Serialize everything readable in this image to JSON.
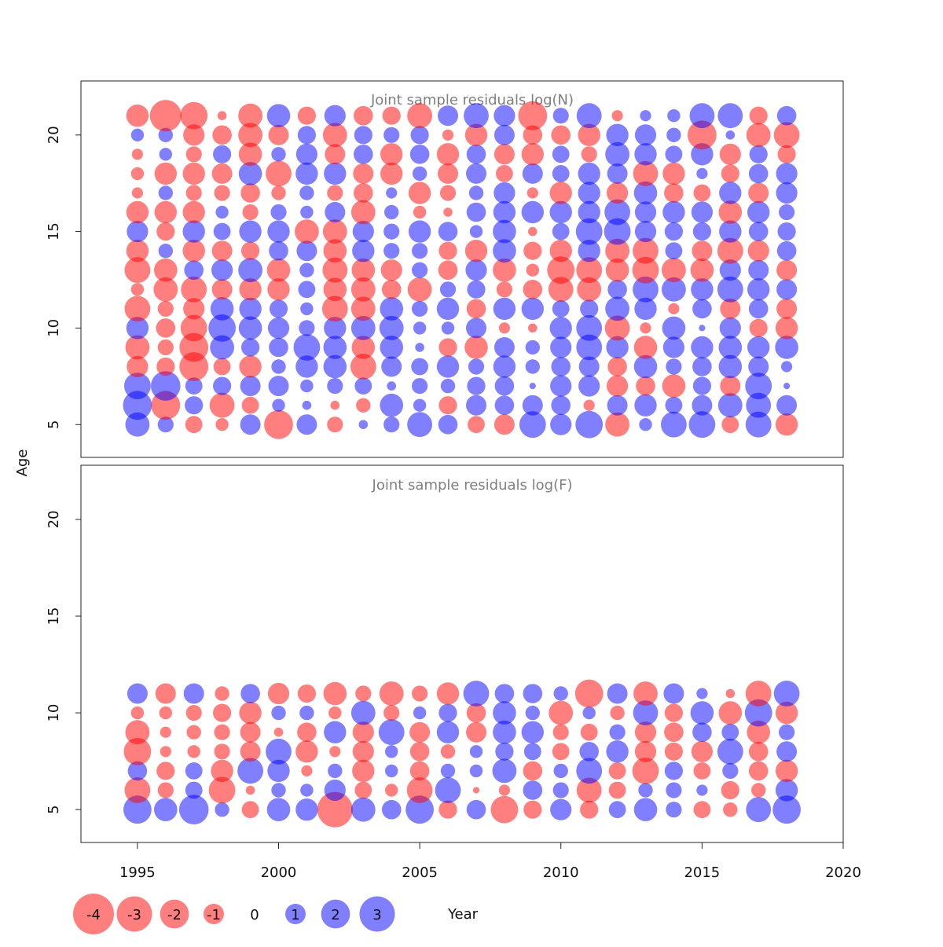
{
  "chart_data": {
    "type": "scatter",
    "xlabel": "Year",
    "ylabel": "Age",
    "xlim": [
      1993,
      2020
    ],
    "x_ticks": [
      "1995",
      "2000",
      "2005",
      "2010",
      "2015",
      "2020"
    ],
    "y_ticks": [
      "5",
      "10",
      "15",
      "20"
    ],
    "colors": {
      "negative": "#ff0000",
      "positive": "#0000ff",
      "alpha": 0.5
    },
    "years": [
      1995,
      1996,
      1997,
      1998,
      1999,
      2000,
      2001,
      2002,
      2003,
      2004,
      2005,
      2006,
      2007,
      2008,
      2009,
      2010,
      2011,
      2012,
      2013,
      2014,
      2015,
      2016,
      2017,
      2018
    ],
    "legend": [
      {
        "value": -4,
        "label": "-4"
      },
      {
        "value": -3,
        "label": "-3"
      },
      {
        "value": -2,
        "label": "-2"
      },
      {
        "value": -1,
        "label": "-1"
      },
      {
        "value": 0,
        "label": "0"
      },
      {
        "value": 1,
        "label": "1"
      },
      {
        "value": 2,
        "label": "2"
      },
      {
        "value": 3,
        "label": "3"
      }
    ],
    "panels": [
      {
        "title": "Joint sample residuals log(N)",
        "ylim": [
          3.3,
          22.8
        ],
        "ages": [
          5,
          6,
          7,
          8,
          9,
          10,
          11,
          12,
          13,
          14,
          15,
          16,
          17,
          18,
          19,
          20,
          21
        ],
        "residuals": [
          [
            1.4,
            0.6,
            -0.7,
            -0.4,
            1.0,
            -2.0,
            1.0,
            -0.6,
            0.2,
            0.6,
            1.5,
            0.9,
            -0.7,
            -1.0,
            1.7,
            1.1,
            1.8,
            -1.4,
            0.4,
            1.6,
            1.7,
            -0.7,
            1.6,
            -1.2
          ],
          [
            2.0,
            -2.0,
            0.8,
            -1.5,
            -0.7,
            0.4,
            0.2,
            -0.2,
            -0.5,
            1.3,
            0.4,
            -0.8,
            1.0,
            0.9,
            1.0,
            0.9,
            -0.3,
            1.0,
            1.2,
            0.7,
            1.0,
            1.4,
            1.5,
            1.0
          ],
          [
            1.7,
            2.1,
            0.7,
            0.8,
            1.0,
            1.0,
            0.4,
            0.6,
            0.7,
            0.2,
            0.6,
            0.5,
            0.8,
            0.9,
            0.1,
            1.1,
            1.1,
            -1.1,
            -0.9,
            -1.3,
            0.8,
            -1.0,
            1.7,
            0.1
          ],
          [
            -1.1,
            -0.8,
            -2.0,
            -0.7,
            -1.2,
            0.5,
            1.2,
            1.3,
            -1.6,
            1.0,
            0.7,
            1.2,
            0.6,
            1.2,
            0.5,
            0.9,
            1.0,
            -0.9,
            1.3,
            0.6,
            0.9,
            1.3,
            1.0,
            0.3
          ],
          [
            -1.4,
            -0.6,
            -2.0,
            1.4,
            0.8,
            0.9,
            1.7,
            1.3,
            -1.3,
            1.3,
            0.2,
            -0.8,
            -1.3,
            1.0,
            0.5,
            1.1,
            1.6,
            1.2,
            -1.3,
            1.1,
            1.2,
            1.3,
            1.2,
            1.3
          ],
          [
            1.2,
            -0.9,
            -1.7,
            1.8,
            1.3,
            1.1,
            0.6,
            1.2,
            1.4,
            1.4,
            0.4,
            0.4,
            1.0,
            -0.3,
            -0.2,
            1.2,
            1.6,
            -1.5,
            -0.3,
            1.3,
            0.1,
            1.1,
            -0.8,
            -1.2
          ],
          [
            -1.6,
            -0.6,
            -1.1,
            1.3,
            1.2,
            0.8,
            0.4,
            -1.6,
            -1.4,
            1.3,
            0.6,
            1.2,
            -0.9,
            1.2,
            1.2,
            0.7,
            0.8,
            1.4,
            1.2,
            -0.3,
            0.9,
            -1.0,
            0.9,
            -1.0
          ],
          [
            -0.4,
            -1.4,
            -1.6,
            -1.0,
            -1.2,
            -1.2,
            0.7,
            -1.3,
            -1.4,
            -0.9,
            -1.4,
            0.6,
            0.8,
            -0.6,
            -0.9,
            -1.5,
            -1.4,
            0.9,
            1.6,
            1.4,
            1.2,
            1.6,
            1.2,
            1.0
          ],
          [
            -1.6,
            -1.3,
            0.9,
            1.1,
            1.4,
            -1.3,
            0.5,
            -1.5,
            -1.3,
            -1.1,
            0.6,
            -0.9,
            1.1,
            -1.3,
            -0.4,
            -1.8,
            -1.6,
            -1.3,
            -1.7,
            -1.4,
            -1.3,
            1.1,
            1.0,
            -1.0
          ],
          [
            -1.2,
            0.5,
            -1.2,
            -1.0,
            -0.8,
            0.9,
            1.0,
            -1.3,
            1.2,
            0.6,
            0.6,
            -0.8,
            -1.2,
            1.3,
            -0.8,
            -1.2,
            1.2,
            -1.4,
            -1.6,
            0.7,
            -1.0,
            -1.6,
            -1.1,
            0.9
          ],
          [
            1.1,
            -0.8,
            1.2,
            0.7,
            1.2,
            1.2,
            -1.4,
            -1.4,
            1.1,
            0.6,
            1.2,
            0.9,
            0.4,
            1.3,
            -0.2,
            0.7,
            1.7,
            1.7,
            1.1,
            0.8,
            0.8,
            1.2,
            0.9,
            0.8
          ],
          [
            -1.2,
            -1.2,
            -1.2,
            0.4,
            -0.6,
            0.6,
            0.4,
            1.0,
            -1.4,
            0.5,
            -0.4,
            -0.2,
            0.9,
            1.2,
            1.2,
            1.2,
            1.2,
            1.6,
            1.1,
            1.2,
            1.1,
            -1.3,
            1.2,
            0.6
          ],
          [
            -0.3,
            0.5,
            -0.6,
            -0.6,
            -0.9,
            -0.5,
            0.5,
            -0.6,
            -0.9,
            0.3,
            -1.2,
            -0.6,
            0.5,
            1.1,
            -0.3,
            -1.2,
            1.2,
            -1.1,
            1.3,
            -0.9,
            -0.7,
            1.2,
            -1.0,
            1.1
          ],
          [
            -0.4,
            -1.2,
            -1.2,
            -1.0,
            1.3,
            -1.6,
            1.2,
            1.2,
            -1.0,
            -1.2,
            0.5,
            -1.0,
            1.0,
            -0.7,
            1.0,
            0.7,
            1.2,
            1.0,
            -1.5,
            -1.2,
            0.3,
            -0.8,
            0.9,
            1.1
          ],
          [
            -0.3,
            0.4,
            -0.6,
            0.8,
            -1.3,
            0.5,
            1.1,
            -1.0,
            0.9,
            -1.2,
            0.9,
            -1.2,
            0.9,
            -1.0,
            -1.2,
            0.7,
            -0.6,
            1.4,
            1.2,
            0.7,
            1.2,
            -1.1,
            0.8,
            -0.8
          ],
          [
            0.4,
            0.5,
            -1.1,
            -0.9,
            -1.4,
            -1.0,
            0.8,
            -1.4,
            0.8,
            0.6,
            0.8,
            -0.3,
            -1.2,
            1.0,
            -0.9,
            -0.9,
            -1.2,
            1.2,
            1.1,
            0.5,
            -2.0,
            0.2,
            -1.4,
            -1.6
          ],
          [
            -1.2,
            -2.4,
            -1.8,
            -0.2,
            -1.4,
            1.3,
            -0.8,
            1.1,
            -0.9,
            -0.8,
            -1.5,
            1.0,
            1.5,
            1.1,
            -2.0,
            0.6,
            1.5,
            -0.3,
            0.3,
            0.4,
            1.5,
            1.5,
            -0.8,
            0.9
          ]
        ]
      },
      {
        "title": "Joint sample residuals log(F)",
        "ylim": [
          3.3,
          22.8
        ],
        "ages": [
          5,
          6,
          7,
          8,
          9,
          10,
          11
        ],
        "residuals": [
          [
            1.9,
            1.3,
            2.1,
            0.5,
            -0.7,
            1.3,
            1.2,
            -3.0,
            1.4,
            0.9,
            1.9,
            -0.8,
            0.9,
            -1.8,
            -0.8,
            1.1,
            -0.8,
            0.7,
            1.3,
            0.6,
            -0.7,
            -0.5,
            1.5,
            1.9
          ],
          [
            -1.6,
            -0.6,
            0.7,
            -1.7,
            -0.2,
            0.5,
            0.4,
            1.1,
            -0.7,
            -0.4,
            -1.6,
            1.6,
            -0.1,
            -0.3,
            0.9,
            0.6,
            -1.5,
            -0.7,
            0.5,
            0.6,
            0.3,
            -0.8,
            -0.5,
            1.2
          ],
          [
            0.9,
            -0.8,
            0.7,
            -1.2,
            1.6,
            1.2,
            -0.3,
            0.5,
            -1.2,
            0.4,
            -0.9,
            0.5,
            0.4,
            1.4,
            -0.9,
            0.5,
            1.6,
            -0.7,
            -1.7,
            0.8,
            -0.7,
            0.6,
            -0.9,
            -1.2
          ],
          [
            -1.8,
            -0.3,
            -0.4,
            -0.6,
            -1.0,
            1.6,
            -1.2,
            -0.3,
            -1.1,
            0.4,
            -0.9,
            -0.5,
            0.4,
            0.8,
            0.7,
            -0.7,
            0.9,
            1.2,
            -1.1,
            -0.8,
            -1.1,
            1.6,
            -0.9,
            1.0
          ],
          [
            -1.4,
            -0.3,
            -0.5,
            -0.6,
            -1.0,
            -0.2,
            -0.9,
            1.2,
            -1.1,
            1.6,
            -1.0,
            1.2,
            -1.0,
            1.3,
            1.2,
            -0.6,
            -0.7,
            0.6,
            -1.1,
            -0.9,
            0.9,
            0.7,
            -1.3,
            0.6
          ],
          [
            -0.4,
            -0.4,
            -0.6,
            -0.8,
            -1.2,
            0.5,
            0.5,
            -0.4,
            1.4,
            -0.6,
            0.4,
            0.8,
            -0.9,
            1.3,
            0.5,
            -1.4,
            0.4,
            -0.5,
            1.5,
            -0.8,
            1.3,
            -1.3,
            1.8,
            -1.2
          ],
          [
            1.0,
            -1.0,
            1.0,
            -0.5,
            0.9,
            -1.1,
            -0.8,
            -1.3,
            -0.6,
            -1.4,
            -0.6,
            -1.2,
            1.6,
            0.9,
            0.9,
            0.5,
            -1.9,
            1.0,
            -1.4,
            1.0,
            0.3,
            -0.2,
            -1.6,
            1.6
          ]
        ]
      }
    ]
  }
}
